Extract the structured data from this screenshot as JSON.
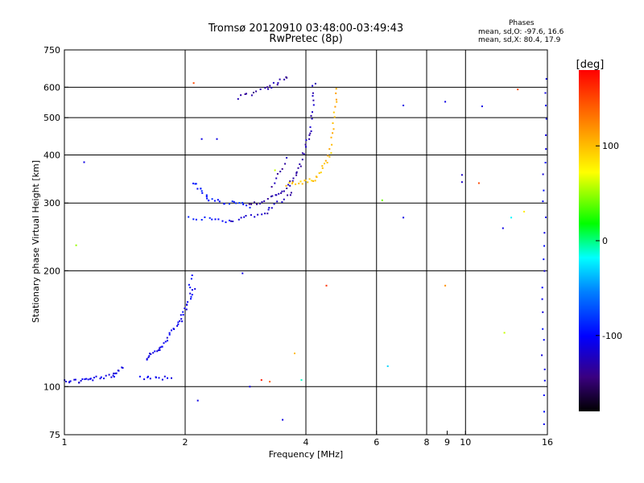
{
  "title_line1": "Tromsø 20120910 03:48:00-03:49:43",
  "title_line2": "RwPretec (8p)",
  "phases": {
    "title": "Phases",
    "o_stats": "mean, sd,O: -97.6, 16.6",
    "x_stats": "mean, sd,X:  80.4, 17.9"
  },
  "chart_data": {
    "type": "scatter",
    "xlabel": "Frequency [MHz]",
    "ylabel": "Stationary phase Virtual Height [km]",
    "xscale": "log",
    "yscale": "log",
    "xlim": [
      1,
      16
    ],
    "ylim": [
      75,
      750
    ],
    "xticks": [
      1,
      2,
      4,
      6,
      8,
      9,
      10,
      16
    ],
    "xtick_labels": [
      "1",
      "2",
      "4",
      "6",
      "8",
      "9",
      "10",
      "16"
    ],
    "yticks": [
      75,
      100,
      200,
      300,
      400,
      500,
      600,
      750
    ],
    "ytick_labels": [
      "75",
      "100",
      "200",
      "300",
      "400",
      "500",
      "600",
      "750"
    ],
    "grid_x": [
      2,
      4,
      6,
      8,
      10
    ],
    "grid_y": [
      100,
      200,
      300,
      400,
      500,
      600
    ],
    "colorbar": {
      "label": "[deg]",
      "range": [
        -180,
        180
      ],
      "ticks": [
        100,
        0,
        -100
      ],
      "tick_labels": [
        "100",
        "0",
        "-100"
      ]
    },
    "trace_segments": [
      {
        "f1": 1.0,
        "h1": 103,
        "f2": 1.15,
        "h2": 104,
        "phase": -110,
        "n": 14
      },
      {
        "f1": 1.15,
        "h1": 104,
        "f2": 1.32,
        "h2": 107,
        "phase": -110,
        "n": 12
      },
      {
        "f1": 1.32,
        "h1": 107,
        "f2": 1.4,
        "h2": 113,
        "phase": -110,
        "n": 8
      },
      {
        "f1": 1.55,
        "h1": 105,
        "f2": 1.85,
        "h2": 105,
        "phase": -105,
        "n": 12
      },
      {
        "f1": 1.6,
        "h1": 118,
        "f2": 1.75,
        "h2": 128,
        "phase": -110,
        "n": 14
      },
      {
        "f1": 1.75,
        "h1": 128,
        "f2": 1.95,
        "h2": 148,
        "phase": -108,
        "n": 14
      },
      {
        "f1": 1.95,
        "h1": 148,
        "f2": 2.1,
        "h2": 180,
        "phase": -105,
        "n": 16
      },
      {
        "f1": 2.05,
        "h1": 180,
        "f2": 2.08,
        "h2": 195,
        "phase": -100,
        "n": 4
      },
      {
        "f1": 2.1,
        "h1": 340,
        "f2": 2.3,
        "h2": 305,
        "phase": -95,
        "n": 12
      },
      {
        "f1": 2.3,
        "h1": 305,
        "f2": 2.9,
        "h2": 295,
        "phase": -90,
        "n": 16
      },
      {
        "f1": 2.9,
        "h1": 295,
        "f2": 3.5,
        "h2": 318,
        "phase": -130,
        "n": 14
      },
      {
        "f1": 3.5,
        "h1": 318,
        "f2": 3.8,
        "h2": 360,
        "phase": -130,
        "n": 10
      },
      {
        "f1": 3.8,
        "h1": 360,
        "f2": 4.1,
        "h2": 450,
        "phase": -125,
        "n": 12
      },
      {
        "f1": 4.1,
        "h1": 450,
        "f2": 4.2,
        "h2": 620,
        "phase": -125,
        "n": 12
      },
      {
        "f1": 2.05,
        "h1": 275,
        "f2": 2.6,
        "h2": 268,
        "phase": -95,
        "n": 12
      },
      {
        "f1": 2.6,
        "h1": 268,
        "f2": 3.2,
        "h2": 285,
        "phase": -120,
        "n": 12
      },
      {
        "f1": 3.2,
        "h1": 285,
        "f2": 3.7,
        "h2": 320,
        "phase": -125,
        "n": 10
      },
      {
        "f1": 3.3,
        "h1": 330,
        "f2": 3.6,
        "h2": 390,
        "phase": -130,
        "n": 8
      },
      {
        "f1": 3.6,
        "h1": 335,
        "f2": 4.2,
        "h2": 345,
        "phase": 95,
        "n": 14
      },
      {
        "f1": 4.2,
        "h1": 345,
        "f2": 4.6,
        "h2": 400,
        "phase": 100,
        "n": 12
      },
      {
        "f1": 4.6,
        "h1": 400,
        "f2": 4.8,
        "h2": 600,
        "phase": 105,
        "n": 14
      },
      {
        "f1": 2.7,
        "h1": 565,
        "f2": 3.2,
        "h2": 595,
        "phase": -130,
        "n": 10
      },
      {
        "f1": 3.2,
        "h1": 595,
        "f2": 3.6,
        "h2": 640,
        "phase": -130,
        "n": 10
      },
      {
        "f1": 15.6,
        "h1": 80,
        "f2": 15.8,
        "h2": 630,
        "phase": -105,
        "n": 26
      }
    ],
    "points": [
      {
        "f": 1.12,
        "h": 383,
        "phase": -110
      },
      {
        "f": 1.07,
        "h": 233,
        "phase": 50
      },
      {
        "f": 2.1,
        "h": 615,
        "phase": 150
      },
      {
        "f": 2.2,
        "h": 440,
        "phase": -110
      },
      {
        "f": 2.4,
        "h": 440,
        "phase": -110
      },
      {
        "f": 2.15,
        "h": 92,
        "phase": -110
      },
      {
        "f": 2.78,
        "h": 197,
        "phase": -110
      },
      {
        "f": 2.9,
        "h": 100,
        "phase": -110
      },
      {
        "f": 3.1,
        "h": 104,
        "phase": 170
      },
      {
        "f": 3.25,
        "h": 103,
        "phase": 140
      },
      {
        "f": 3.35,
        "h": 365,
        "phase": 60
      },
      {
        "f": 3.5,
        "h": 82,
        "phase": -110
      },
      {
        "f": 3.75,
        "h": 122,
        "phase": 100
      },
      {
        "f": 3.9,
        "h": 104,
        "phase": -10
      },
      {
        "f": 4.5,
        "h": 183,
        "phase": 160
      },
      {
        "f": 6.2,
        "h": 305,
        "phase": 40
      },
      {
        "f": 6.4,
        "h": 113,
        "phase": -30
      },
      {
        "f": 7.0,
        "h": 275,
        "phase": -110
      },
      {
        "f": 7.0,
        "h": 538,
        "phase": -110
      },
      {
        "f": 8.9,
        "h": 550,
        "phase": -110
      },
      {
        "f": 8.9,
        "h": 183,
        "phase": 120
      },
      {
        "f": 9.8,
        "h": 355,
        "phase": -120
      },
      {
        "f": 9.8,
        "h": 340,
        "phase": -120
      },
      {
        "f": 10.8,
        "h": 338,
        "phase": 150
      },
      {
        "f": 11.0,
        "h": 535,
        "phase": -110
      },
      {
        "f": 12.4,
        "h": 258,
        "phase": -110
      },
      {
        "f": 12.5,
        "h": 138,
        "phase": 60
      },
      {
        "f": 13.0,
        "h": 275,
        "phase": -20
      },
      {
        "f": 13.5,
        "h": 592,
        "phase": 150
      },
      {
        "f": 14.0,
        "h": 285,
        "phase": 80
      }
    ]
  }
}
